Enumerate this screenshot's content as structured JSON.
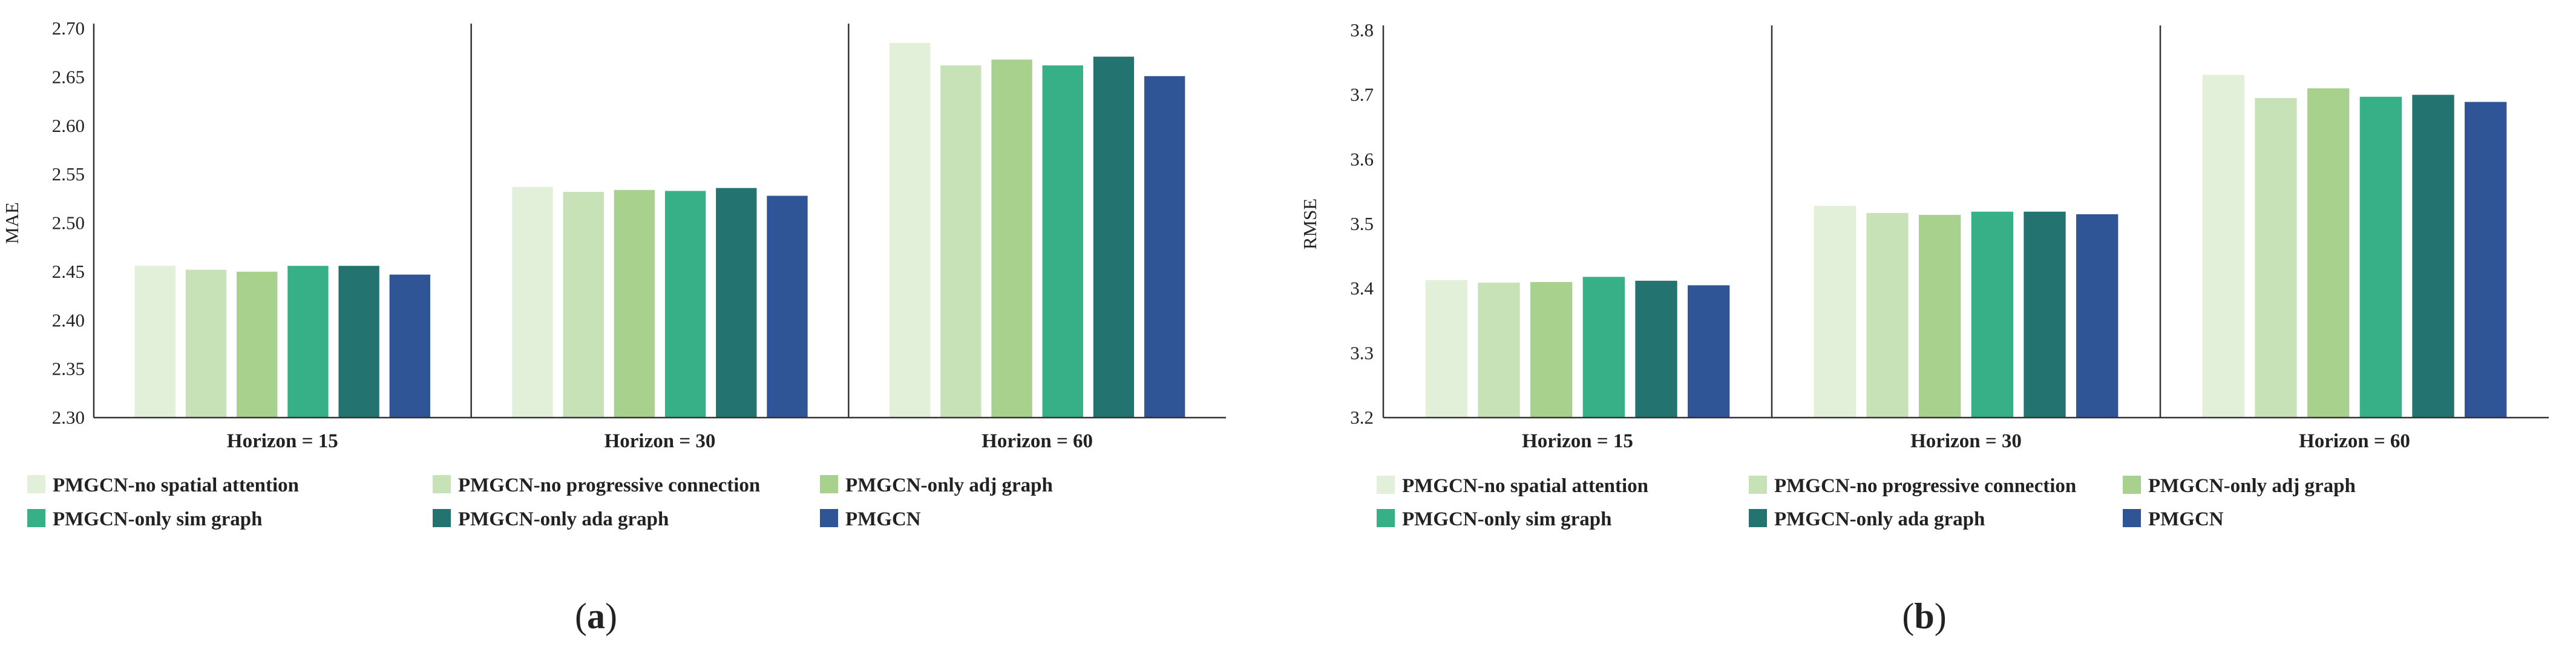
{
  "colors": {
    "PMGCN-no spatial attention": "#e2efd9",
    "PMGCN-no progressive connection": "#c7e2b7",
    "PMGCN-only adj graph": "#a9d18e",
    "PMGCN-only sim graph": "#37b088",
    "PMGCN-only ada graph": "#237470",
    "PMGCN": "#2f5597"
  },
  "panels": [
    {
      "label_bold": "a",
      "open": "(",
      "close": ")"
    },
    {
      "label_bold": "b",
      "open": "(",
      "close": ")"
    }
  ],
  "chart_data": [
    {
      "type": "bar",
      "title": "",
      "xlabel": "",
      "ylabel": "MAE",
      "ylim": [
        2.3,
        2.7
      ],
      "yticks": [
        "2.30",
        "2.35",
        "2.40",
        "2.45",
        "2.50",
        "2.55",
        "2.60",
        "2.65",
        "2.70"
      ],
      "categories": [
        "Horizon = 15",
        "Horizon = 30",
        "Horizon = 60"
      ],
      "series": [
        {
          "name": "PMGCN-no spatial attention",
          "values": [
            2.456,
            2.537,
            2.685
          ]
        },
        {
          "name": "PMGCN-no progressive connection",
          "values": [
            2.452,
            2.532,
            2.662
          ]
        },
        {
          "name": "PMGCN-only adj graph",
          "values": [
            2.45,
            2.534,
            2.668
          ]
        },
        {
          "name": "PMGCN-only sim graph",
          "values": [
            2.456,
            2.533,
            2.662
          ]
        },
        {
          "name": "PMGCN-only ada graph",
          "values": [
            2.456,
            2.536,
            2.671
          ]
        },
        {
          "name": "PMGCN",
          "values": [
            2.447,
            2.528,
            2.651
          ]
        }
      ]
    },
    {
      "type": "bar",
      "title": "",
      "xlabel": "",
      "ylabel": "RMSE",
      "ylim": [
        3.2,
        3.8
      ],
      "yticks": [
        "3.2",
        "3.3",
        "3.4",
        "3.5",
        "3.6",
        "3.7",
        "3.8"
      ],
      "categories": [
        "Horizon = 15",
        "Horizon = 30",
        "Horizon = 60"
      ],
      "series": [
        {
          "name": "PMGCN-no spatial attention",
          "values": [
            3.413,
            3.528,
            3.731
          ]
        },
        {
          "name": "PMGCN-no progressive connection",
          "values": [
            3.409,
            3.517,
            3.695
          ]
        },
        {
          "name": "PMGCN-only adj graph",
          "values": [
            3.41,
            3.514,
            3.71
          ]
        },
        {
          "name": "PMGCN-only sim graph",
          "values": [
            3.418,
            3.519,
            3.697
          ]
        },
        {
          "name": "PMGCN-only ada graph",
          "values": [
            3.412,
            3.519,
            3.7
          ]
        },
        {
          "name": "PMGCN",
          "values": [
            3.405,
            3.515,
            3.689
          ]
        }
      ]
    }
  ]
}
